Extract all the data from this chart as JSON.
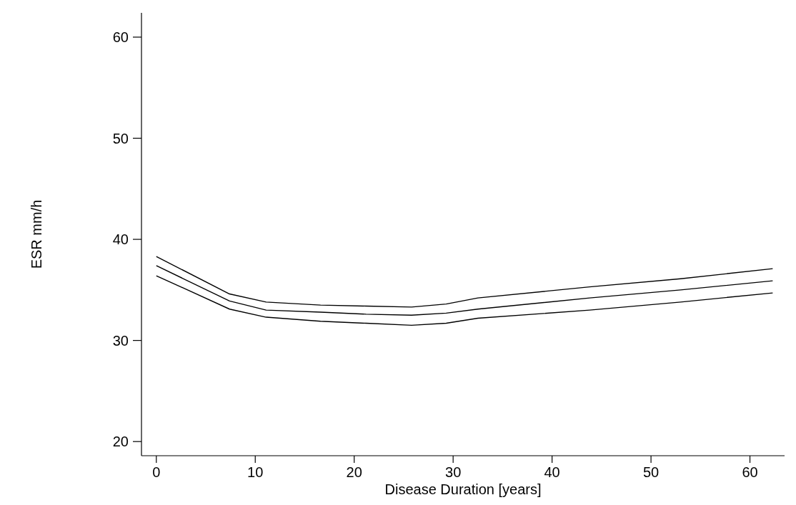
{
  "chart_data": {
    "type": "line",
    "xlabel": "Disease Duration [years]",
    "ylabel": "ESR mm/h",
    "x": [
      0,
      7.4,
      11.1,
      16.6,
      21.2,
      25.8,
      29.3,
      32.5,
      43.8,
      53.0,
      62.3
    ],
    "series": [
      {
        "color": "#000000",
        "values": [
          38.3,
          34.6,
          33.8,
          33.5,
          33.4,
          33.3,
          33.6,
          34.2,
          35.3,
          36.1,
          37.1
        ]
      },
      {
        "color": "#000000",
        "values": [
          37.4,
          33.9,
          33.0,
          32.8,
          32.6,
          32.5,
          32.7,
          33.1,
          34.2,
          35.0,
          35.9
        ]
      },
      {
        "color": "#000000",
        "values": [
          36.4,
          33.1,
          32.3,
          31.9,
          31.7,
          31.5,
          31.7,
          32.2,
          33.0,
          33.8,
          34.7
        ]
      }
    ],
    "xlim": [
      -1.5,
      63.5
    ],
    "xticks": [
      0,
      10,
      20,
      30,
      40,
      50,
      60
    ],
    "ylim": [
      18.6,
      62.4
    ],
    "yticks": [
      20,
      30,
      40,
      50,
      60
    ],
    "marker": "none",
    "line_style": "solid"
  }
}
